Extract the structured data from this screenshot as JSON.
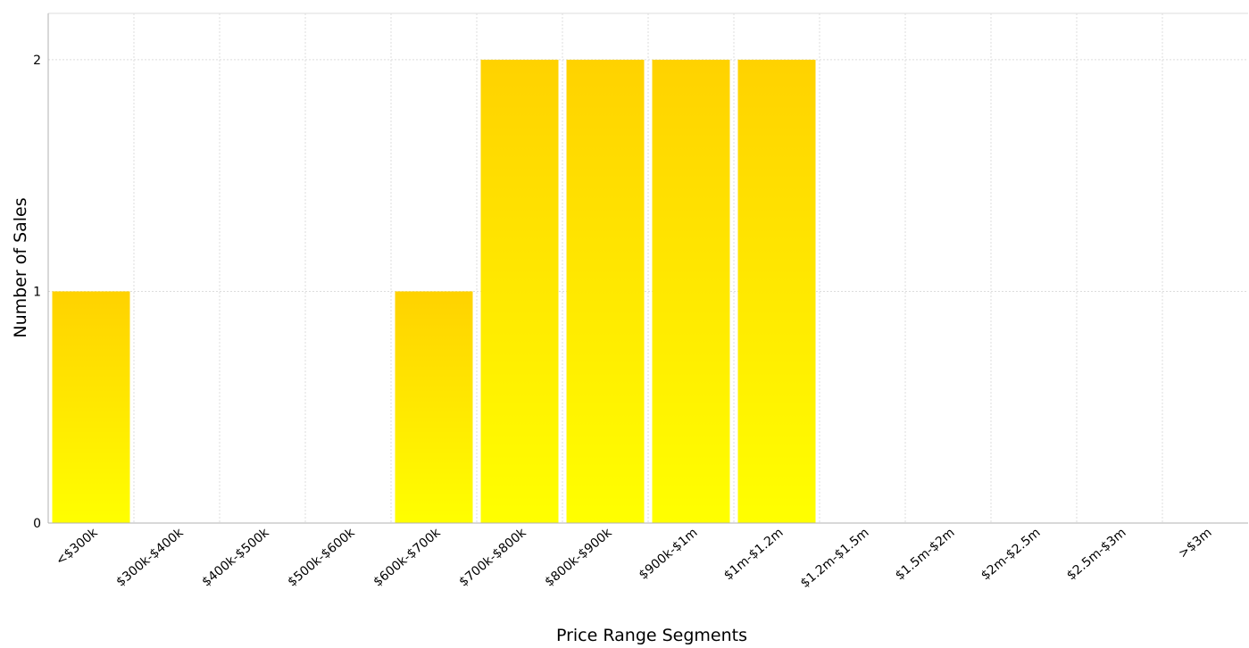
{
  "chart_data": {
    "type": "bar",
    "categories": [
      "<$300k",
      "$300k-$400k",
      "$400k-$500k",
      "$500k-$600k",
      "$600k-$700k",
      "$700k-$800k",
      "$800k-$900k",
      "$900k-$1m",
      "$1m-$1.2m",
      "$1.2m-$1.5m",
      "$1.5m-$2m",
      "$2m-$2.5m",
      "$2.5m-$3m",
      ">$3m"
    ],
    "values": [
      1,
      0,
      0,
      0,
      1,
      2,
      2,
      2,
      2,
      0,
      0,
      0,
      0,
      0
    ],
    "xlabel": "Price Range Segments",
    "ylabel": "Number of Sales",
    "yticks": [
      0,
      1,
      2
    ],
    "ylim": [
      0,
      2.2
    ],
    "grid": true,
    "colors": {
      "bar_top": "#FFD200",
      "bar_bottom": "#FFFF00",
      "grid": "#dddddd",
      "axis": "#b0b0b0"
    }
  }
}
